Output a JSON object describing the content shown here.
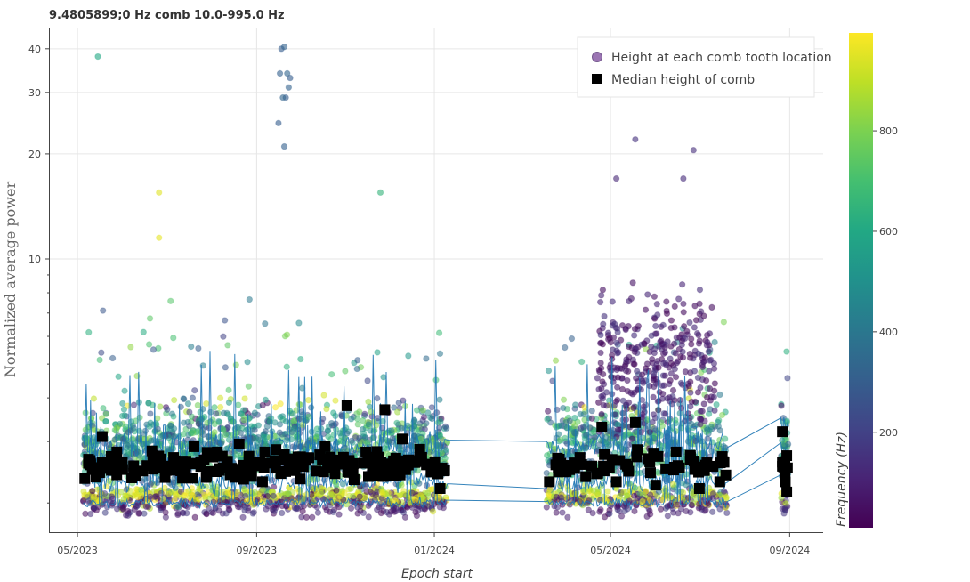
{
  "chart_data": {
    "type": "scatter",
    "title": "9.4805899;0 Hz comb 10.0-995.0 Hz",
    "xlabel": "Epoch start",
    "ylabel": "Normalized average power",
    "y_scale": "log",
    "ylim": [
      1.65,
      46
    ],
    "xlim": [
      "2023-04-12",
      "2024-09-24"
    ],
    "x_ticks": [
      {
        "date": "2023-05-01",
        "label": "05/2023"
      },
      {
        "date": "2023-09-01",
        "label": "09/2023"
      },
      {
        "date": "2024-01-01",
        "label": "01/2024"
      },
      {
        "date": "2024-05-01",
        "label": "05/2024"
      },
      {
        "date": "2024-09-01",
        "label": "09/2024"
      }
    ],
    "y_ticks": [
      10,
      20,
      30,
      40
    ],
    "grid": true,
    "legend": {
      "placement": "top-right",
      "entries": [
        "Height at each comb tooth location",
        "Median height of comb"
      ]
    },
    "colorbar": {
      "label": "Frequency (Hz)",
      "range": [
        10,
        995
      ],
      "ticks": [
        200,
        400,
        600,
        800
      ],
      "colormap": "viridis"
    },
    "series": [
      {
        "name": "Height at each comb tooth location",
        "marker": "circle",
        "outlier_points": [
          {
            "x": "2023-05-15",
            "y": 38,
            "freq": 600
          },
          {
            "x": "2023-06-26",
            "y": 15.5,
            "freq": 950
          },
          {
            "x": "2023-06-26",
            "y": 11.5,
            "freq": 960
          },
          {
            "x": "2023-09-18",
            "y": 40,
            "freq": 300
          },
          {
            "x": "2023-09-20",
            "y": 40.5,
            "freq": 320
          },
          {
            "x": "2023-09-17",
            "y": 34,
            "freq": 310
          },
          {
            "x": "2023-09-22",
            "y": 34,
            "freq": 330
          },
          {
            "x": "2023-09-24",
            "y": 33,
            "freq": 300
          },
          {
            "x": "2023-09-23",
            "y": 31,
            "freq": 320
          },
          {
            "x": "2023-09-21",
            "y": 29,
            "freq": 300
          },
          {
            "x": "2023-09-19",
            "y": 29,
            "freq": 330
          },
          {
            "x": "2023-09-16",
            "y": 24.5,
            "freq": 300
          },
          {
            "x": "2023-09-20",
            "y": 21,
            "freq": 310
          },
          {
            "x": "2023-11-25",
            "y": 15.5,
            "freq": 650
          },
          {
            "x": "2024-05-18",
            "y": 22,
            "freq": 150
          },
          {
            "x": "2024-06-27",
            "y": 20.5,
            "freq": 140
          },
          {
            "x": "2024-05-05",
            "y": 17,
            "freq": 120
          },
          {
            "x": "2024-06-20",
            "y": 17,
            "freq": 130
          }
        ]
      },
      {
        "name": "Median height of comb",
        "marker": "square",
        "points": [
          {
            "x": "2023-05-06",
            "y": 2.35
          },
          {
            "x": "2023-05-10",
            "y": 2.6
          },
          {
            "x": "2023-05-18",
            "y": 3.1
          },
          {
            "x": "2023-05-28",
            "y": 2.8
          },
          {
            "x": "2023-06-10",
            "y": 2.4
          },
          {
            "x": "2023-06-22",
            "y": 2.5
          },
          {
            "x": "2023-07-06",
            "y": 2.7
          },
          {
            "x": "2023-07-20",
            "y": 2.9
          },
          {
            "x": "2023-08-05",
            "y": 2.8
          },
          {
            "x": "2023-08-20",
            "y": 2.95
          },
          {
            "x": "2023-09-05",
            "y": 2.3
          },
          {
            "x": "2023-09-20",
            "y": 2.75
          },
          {
            "x": "2023-10-05",
            "y": 2.65
          },
          {
            "x": "2023-10-18",
            "y": 2.9
          },
          {
            "x": "2023-11-02",
            "y": 3.8
          },
          {
            "x": "2023-11-15",
            "y": 2.8
          },
          {
            "x": "2023-11-28",
            "y": 3.7
          },
          {
            "x": "2023-12-10",
            "y": 3.05
          },
          {
            "x": "2023-12-22",
            "y": 2.85
          },
          {
            "x": "2024-01-05",
            "y": 2.2
          },
          {
            "x": "2024-03-20",
            "y": 2.3
          },
          {
            "x": "2024-03-28",
            "y": 2.6
          },
          {
            "x": "2024-04-10",
            "y": 2.7
          },
          {
            "x": "2024-04-25",
            "y": 3.3
          },
          {
            "x": "2024-05-05",
            "y": 2.3
          },
          {
            "x": "2024-05-18",
            "y": 3.4
          },
          {
            "x": "2024-06-01",
            "y": 2.25
          },
          {
            "x": "2024-06-15",
            "y": 2.8
          },
          {
            "x": "2024-07-01",
            "y": 2.2
          },
          {
            "x": "2024-07-15",
            "y": 2.3
          },
          {
            "x": "2024-08-27",
            "y": 3.2
          },
          {
            "x": "2024-08-29",
            "y": 2.3
          },
          {
            "x": "2024-08-30",
            "y": 2.15
          }
        ]
      }
    ]
  }
}
